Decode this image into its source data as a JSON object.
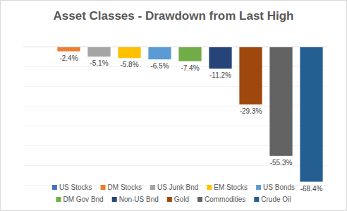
{
  "chart_data": {
    "type": "bar",
    "title": "Asset Classes - Drawdown from Last High",
    "categories": [
      "US Stocks",
      "DM Stocks",
      "US Junk Bnd",
      "EM Stocks",
      "US Bonds",
      "DM Gov Bnd",
      "Non-US Bnd",
      "Gold",
      "Commodities",
      "Crude Oil"
    ],
    "values": [
      -0.2,
      -2.4,
      -5.1,
      -5.8,
      -6.5,
      -7.4,
      -11.2,
      -29.3,
      -55.3,
      -68.4
    ],
    "value_labels": [
      null,
      "-2.4%",
      "-5.1%",
      "-5.8%",
      "-6.5%",
      "-7.4%",
      "-11.2%",
      "-29.3%",
      "-55.3%",
      "-68.4%"
    ],
    "colors": [
      "#4472c4",
      "#ed7d31",
      "#a5a5a5",
      "#ffc000",
      "#5b9bd5",
      "#70ad47",
      "#264478",
      "#9e480e",
      "#636363",
      "#255e91"
    ],
    "ylim": [
      -70,
      0
    ],
    "yticks": [
      -70,
      -60,
      -50,
      -40,
      -30,
      -20,
      -10,
      0
    ],
    "grid": true,
    "data_labels": true,
    "tick_labels": false,
    "legend": "bottom"
  }
}
